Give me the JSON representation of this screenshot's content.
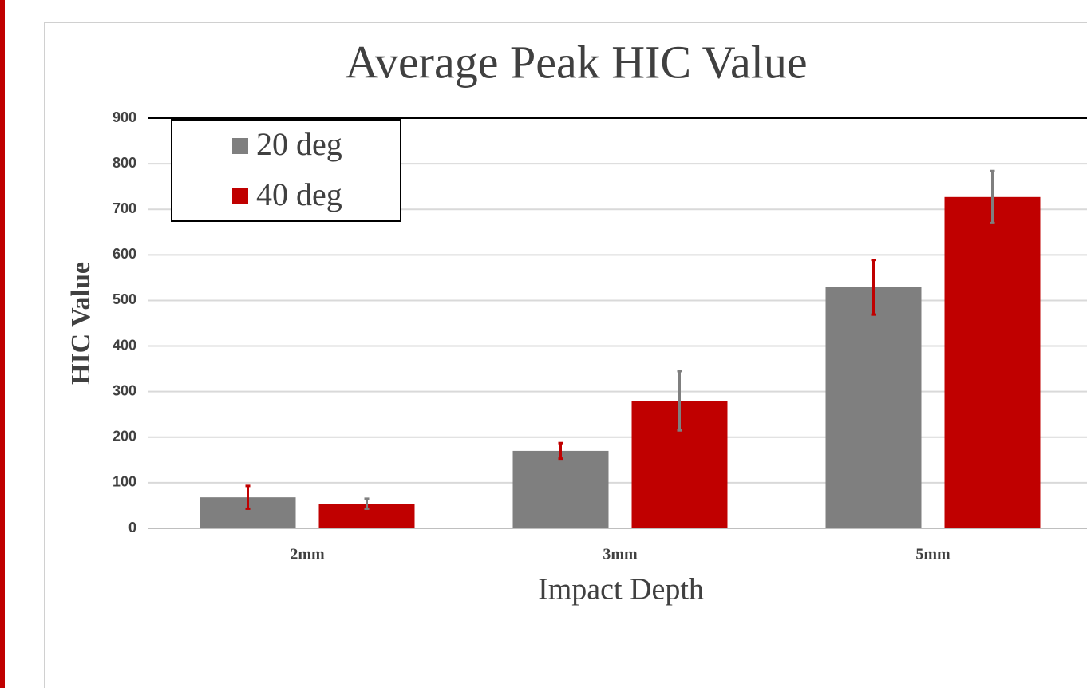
{
  "chart_data": {
    "type": "bar",
    "title": "Average Peak HIC Value",
    "x_label": "Impact Depth",
    "y_label": "HIC Value",
    "categories": [
      "2mm",
      "3mm",
      "5mm"
    ],
    "series": [
      {
        "name": "20 deg",
        "color": "#7f7f7f",
        "error_color": "#c00000",
        "values": [
          68,
          170,
          529
        ],
        "errors": [
          25,
          17,
          60
        ]
      },
      {
        "name": "40 deg",
        "color": "#c00000",
        "error_color": "#7f7f7f",
        "values": [
          54,
          280,
          727
        ],
        "errors": [
          11,
          65,
          57
        ]
      }
    ],
    "ylim": [
      0,
      900
    ],
    "yticks": [
      0,
      100,
      200,
      300,
      400,
      500,
      600,
      700,
      800,
      900
    ],
    "grid": true,
    "legend": "top-left"
  }
}
